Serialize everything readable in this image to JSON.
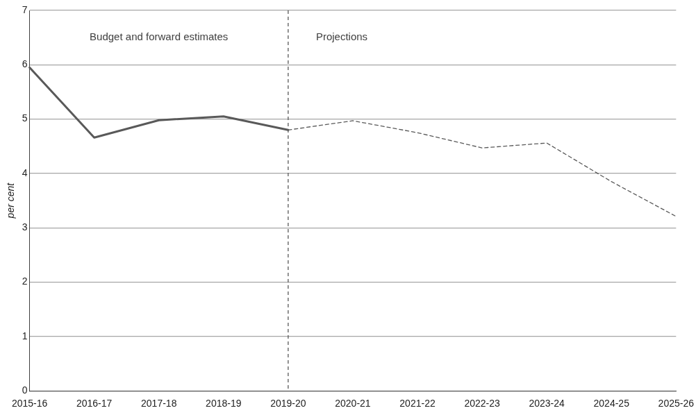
{
  "chart_data": {
    "type": "line",
    "ylabel": "per cent",
    "categories": [
      "2015-16",
      "2016-17",
      "2017-18",
      "2018-19",
      "2019-20",
      "2020-21",
      "2021-22",
      "2022-23",
      "2023-24",
      "2024-25",
      "2025-26"
    ],
    "series": [
      {
        "color": "#595959",
        "line_style": "solid",
        "values": [
          5.95,
          4.66,
          4.98,
          5.05,
          4.8,
          null,
          null,
          null,
          null,
          null,
          null
        ]
      },
      {
        "color": "#595959",
        "line_style": "dashed",
        "values": [
          null,
          null,
          null,
          null,
          4.8,
          4.97,
          4.75,
          4.47,
          4.56,
          3.85,
          3.21
        ]
      }
    ],
    "ylim": [
      0,
      7
    ],
    "yticks": [
      0,
      1,
      2,
      3,
      4,
      5,
      6,
      7
    ],
    "grid": "y",
    "legend": false,
    "marker": "none",
    "ref_lines": [
      {
        "axis": "x",
        "value": "2019-20",
        "color": "#595959",
        "line_style": "dashed"
      }
    ],
    "annotations": [
      "Budget and forward estimates",
      "Projections"
    ]
  }
}
